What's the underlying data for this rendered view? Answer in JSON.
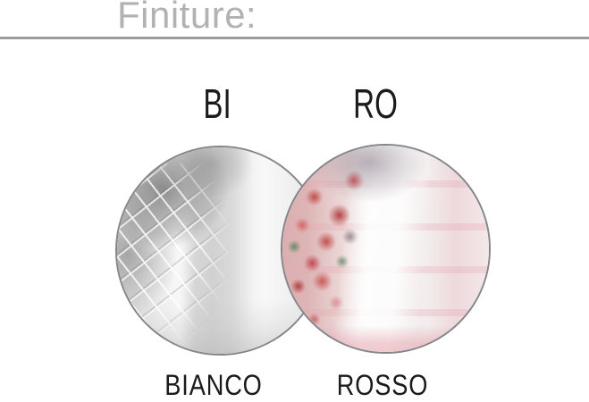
{
  "header": {
    "title": "Finiture:"
  },
  "finishes": [
    {
      "code": "BI",
      "name": "BIANCO",
      "swatch": "white-pendant-lamp-photo"
    },
    {
      "code": "RO",
      "name": "ROSSO",
      "swatch": "red-pendant-lamp-photo"
    }
  ],
  "colors": {
    "header_text": "#b2b2b4",
    "divider": "#9c9c9c",
    "label_text": "#1b1b1d",
    "swatch_border": "#85868a",
    "rosso_accent": "#c15050",
    "bianco_base": "#f0f0f0"
  }
}
